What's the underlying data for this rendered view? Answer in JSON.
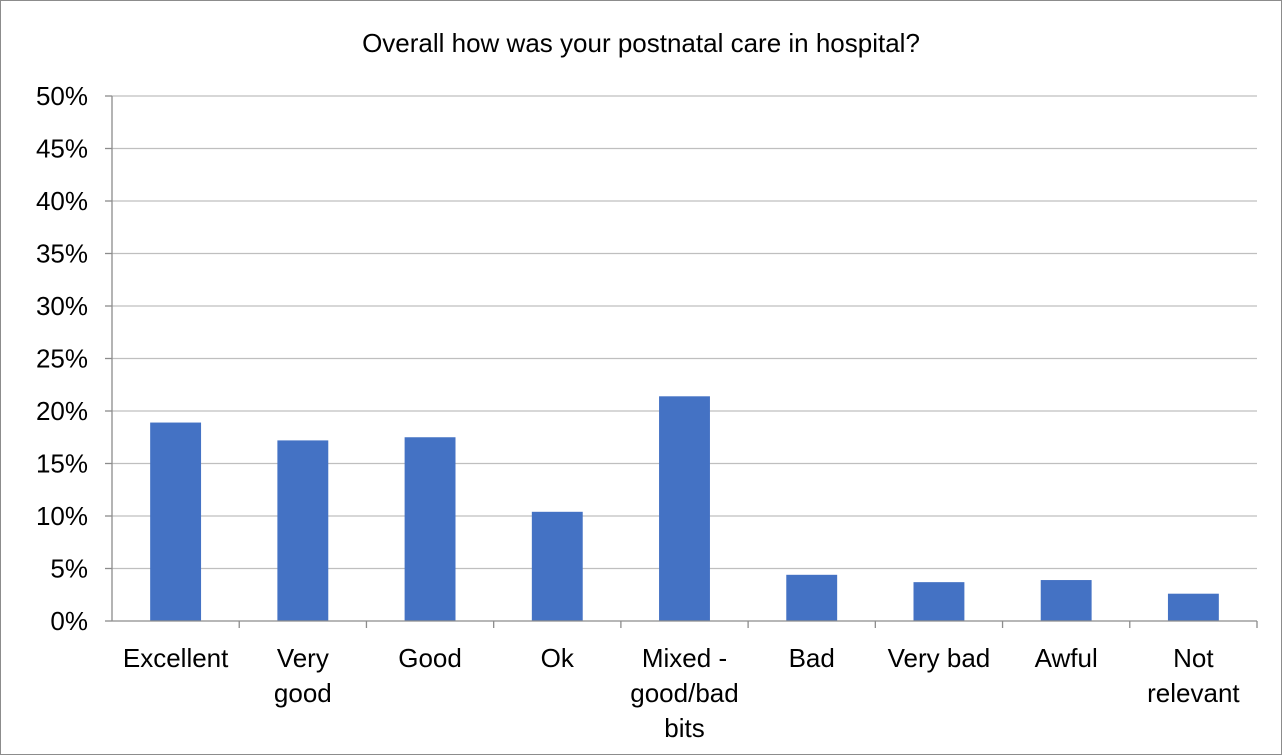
{
  "chart_data": {
    "type": "bar",
    "title": "Overall how was your postnatal care in hospital?",
    "xlabel": "",
    "ylabel": "",
    "categories": [
      [
        "Excellent"
      ],
      [
        "Very",
        "good"
      ],
      [
        "Good"
      ],
      [
        "Ok"
      ],
      [
        "Mixed -",
        "good/bad",
        "bits"
      ],
      [
        "Bad"
      ],
      [
        "Very bad"
      ],
      [
        "Awful"
      ],
      [
        "Not",
        "relevant"
      ]
    ],
    "values": [
      18.9,
      17.2,
      17.5,
      10.4,
      21.4,
      4.4,
      3.7,
      3.9,
      2.6
    ],
    "ylim": [
      0,
      50
    ],
    "yticks": [
      0,
      5,
      10,
      15,
      20,
      25,
      30,
      35,
      40,
      45,
      50
    ],
    "ytick_labels": [
      "0%",
      "5%",
      "10%",
      "15%",
      "20%",
      "25%",
      "30%",
      "35%",
      "40%",
      "45%",
      "50%"
    ],
    "grid": true,
    "legend": "none",
    "bar_color": "#4472c4",
    "grid_color": "#bfbfbf",
    "axis_color": "#8c8c8c"
  }
}
